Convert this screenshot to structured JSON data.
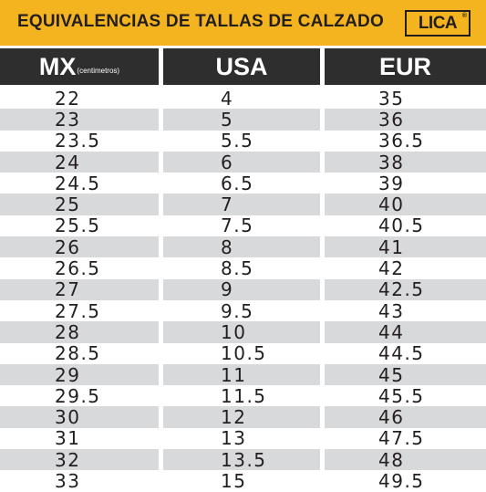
{
  "header": {
    "title": "EQUIVALENCIAS DE TALLAS DE CALZADO",
    "logo_text": "LICA",
    "logo_registered": "®"
  },
  "columns": {
    "mx": "MX",
    "mx_sub": "(centimetros)",
    "usa": "USA",
    "eur": "EUR"
  },
  "rows": [
    {
      "mx": "22",
      "usa": "4",
      "eur": "35"
    },
    {
      "mx": "23",
      "usa": "5",
      "eur": "36"
    },
    {
      "mx": "23.5",
      "usa": "5.5",
      "eur": "36.5"
    },
    {
      "mx": "24",
      "usa": "6",
      "eur": "38"
    },
    {
      "mx": "24.5",
      "usa": "6.5",
      "eur": "39"
    },
    {
      "mx": "25",
      "usa": "7",
      "eur": "40"
    },
    {
      "mx": "25.5",
      "usa": "7.5",
      "eur": "40.5"
    },
    {
      "mx": "26",
      "usa": "8",
      "eur": "41"
    },
    {
      "mx": "26.5",
      "usa": "8.5",
      "eur": "42"
    },
    {
      "mx": "27",
      "usa": "9",
      "eur": "42.5"
    },
    {
      "mx": "27.5",
      "usa": "9.5",
      "eur": "43"
    },
    {
      "mx": "28",
      "usa": "10",
      "eur": "44"
    },
    {
      "mx": "28.5",
      "usa": "10.5",
      "eur": "44.5"
    },
    {
      "mx": "29",
      "usa": "11",
      "eur": "45"
    },
    {
      "mx": "29.5",
      "usa": "11.5",
      "eur": "45.5"
    },
    {
      "mx": "30",
      "usa": "12",
      "eur": "46"
    },
    {
      "mx": "31",
      "usa": "13",
      "eur": "47.5"
    },
    {
      "mx": "32",
      "usa": "13.5",
      "eur": "48"
    },
    {
      "mx": "33",
      "usa": "15",
      "eur": "49.5"
    }
  ],
  "colors": {
    "header_band": "#f4b41f",
    "column_header": "#2f2e2e",
    "row_shade": "#d8d9da",
    "text": "#231f20"
  }
}
